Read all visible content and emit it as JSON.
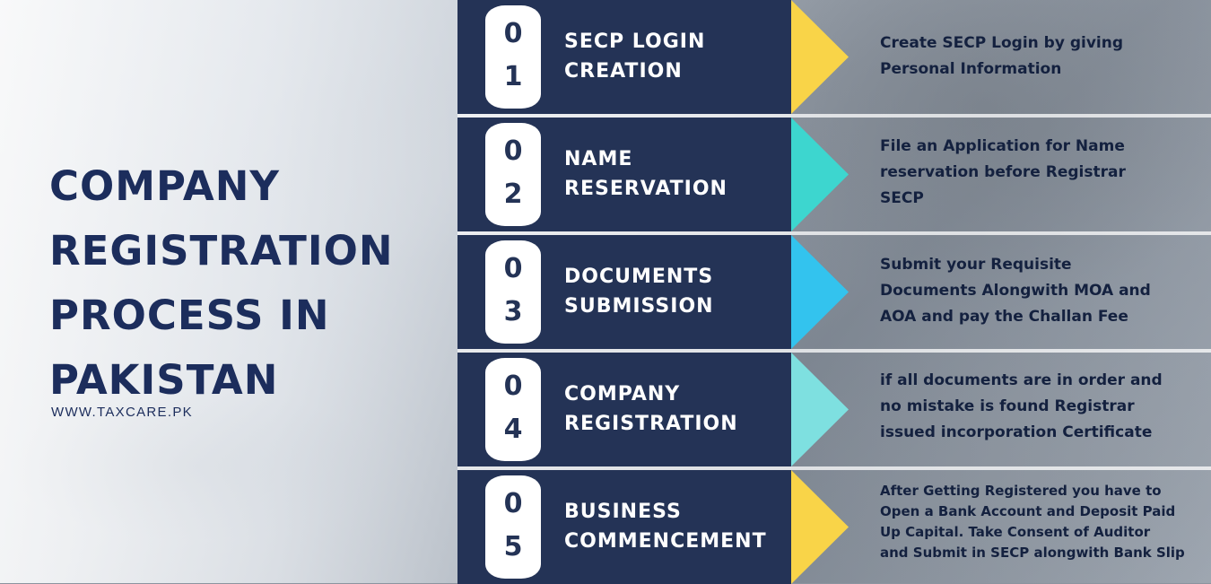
{
  "title_lines": [
    "COMPANY",
    "REGISTRATION",
    "PROCESS IN",
    "PAKISTAN"
  ],
  "website": "WWW.TAXCARE.PK",
  "steps": [
    {
      "digit1": "0",
      "digit2": "1",
      "title_lines": [
        "SECP LOGIN",
        "CREATION"
      ],
      "desc_lines": [
        "Create SECP Login by giving",
        "Personal Information"
      ],
      "arrow_color": "#f9d448"
    },
    {
      "digit1": "0",
      "digit2": "2",
      "title_lines": [
        "NAME",
        "RESERVATION"
      ],
      "desc_lines": [
        "File an Application for Name",
        "reservation before Registrar",
        "SECP"
      ],
      "arrow_color": "#3dd6cf"
    },
    {
      "digit1": "0",
      "digit2": "3",
      "title_lines": [
        "DOCUMENTS",
        "SUBMISSION"
      ],
      "desc_lines": [
        "Submit your Requisite",
        "Documents Alongwith MOA and",
        "AOA and pay the Challan Fee"
      ],
      "arrow_color": "#33c3ee"
    },
    {
      "digit1": "0",
      "digit2": "4",
      "title_lines": [
        "COMPANY",
        "REGISTRATION"
      ],
      "desc_lines": [
        "if all documents are in order and",
        "no mistake is found Registrar",
        "issued incorporation Certificate"
      ],
      "arrow_color": "#7ee0e0"
    },
    {
      "digit1": "0",
      "digit2": "5",
      "title_lines": [
        "BUSINESS",
        "COMMENCEMENT"
      ],
      "desc_lines": [
        "After Getting Registered you have to",
        "Open a Bank Account and Deposit Paid",
        "Up Capital. Take Consent of Auditor",
        "and Submit in SECP alongwith Bank Slip"
      ],
      "arrow_color": "#f9d448"
    }
  ]
}
